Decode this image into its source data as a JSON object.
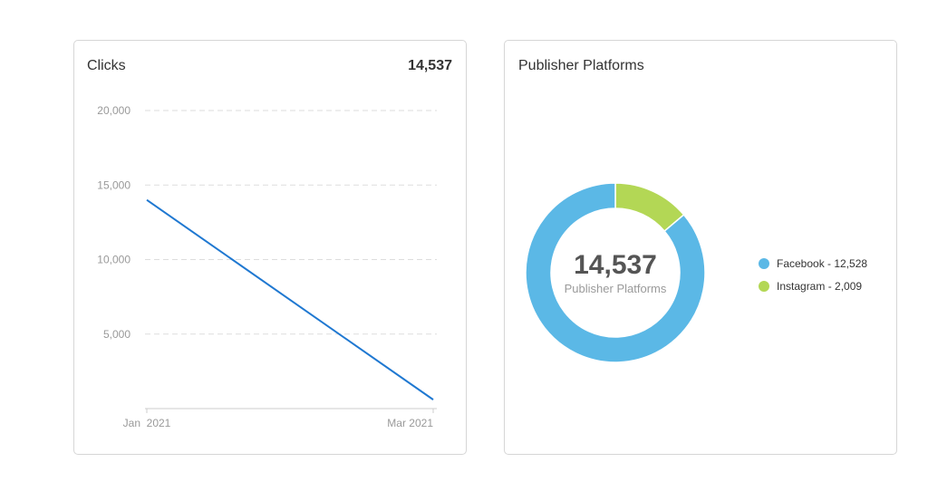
{
  "clicks_card": {
    "title": "Clicks",
    "total": "14,537"
  },
  "platforms_card": {
    "title": "Publisher Platforms",
    "center_value": "14,537",
    "center_label": "Publisher Platforms"
  },
  "colors": {
    "line": "#1f78d1",
    "facebook": "#5bb8e6",
    "instagram": "#b3d755",
    "gridline": "#dddddd"
  },
  "chart_data": [
    {
      "type": "line",
      "title": "Clicks",
      "x": [
        "Jan 2021",
        "Mar 2021"
      ],
      "series": [
        {
          "values": [
            14000,
            600
          ]
        }
      ],
      "xlabel": "",
      "ylabel": "",
      "ylim": [
        0,
        20000
      ],
      "yticks": [
        5000,
        10000,
        15000,
        20000
      ],
      "ytick_labels": [
        "5,000",
        "10,000",
        "15,000",
        "20,000"
      ],
      "xtick_labels": [
        "Jan  2021",
        "Mar 2021"
      ],
      "grid": true
    },
    {
      "type": "pie",
      "donut": true,
      "title": "Publisher Platforms",
      "total": 14537,
      "slices": [
        {
          "name": "Facebook",
          "value": 12528,
          "legend": "Facebook - 12,528",
          "color": "#5bb8e6"
        },
        {
          "name": "Instagram",
          "value": 2009,
          "legend": "Instagram - 2,009",
          "color": "#b3d755"
        }
      ],
      "legend_position": "right"
    }
  ]
}
